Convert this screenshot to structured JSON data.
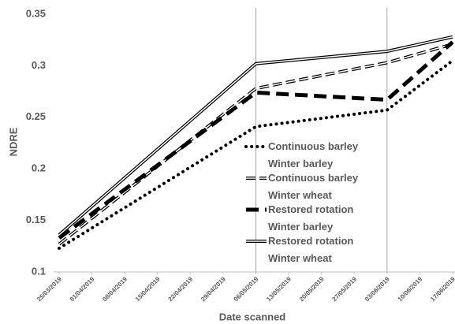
{
  "chart_data": {
    "type": "line",
    "x_label": "Date scanned",
    "y_label": "NDRE",
    "x": [
      "25/03/2019",
      "06/05/2019",
      "03/06/2019",
      "17/06/2019"
    ],
    "xlim": [
      "25/03/2019",
      "17/06/2019"
    ],
    "xticks": [
      "25/03/2019",
      "01/04/2019",
      "08/04/2019",
      "15/04/2019",
      "22/04/2019",
      "29/04/2019",
      "06/05/2019",
      "13/05/2019",
      "20/05/2019",
      "27/05/2019",
      "03/06/2019",
      "10/06/2019",
      "17/06/2019"
    ],
    "ylim": [
      0.1,
      0.35
    ],
    "yticks": [
      0.1,
      0.15,
      0.2,
      0.25,
      0.3,
      0.35
    ],
    "legend_position": "right",
    "series": [
      {
        "name": "Continuous barley Winter barley",
        "color": "#000000",
        "style": "dotted",
        "values": [
          0.123,
          0.241,
          0.257,
          0.305
        ]
      },
      {
        "name": "Continuous barley Winter wheat",
        "color": "#000000",
        "style": "outlined-dash",
        "values": [
          0.127,
          0.278,
          0.303,
          0.321
        ]
      },
      {
        "name": "Restored rotation Winter barley",
        "color": "#000000",
        "style": "thick-dash",
        "values": [
          0.133,
          0.274,
          0.267,
          0.323
        ]
      },
      {
        "name": "Restored rotation Winter wheat",
        "color": "#000000",
        "style": "double",
        "values": [
          0.136,
          0.302,
          0.314,
          0.328
        ]
      }
    ]
  }
}
